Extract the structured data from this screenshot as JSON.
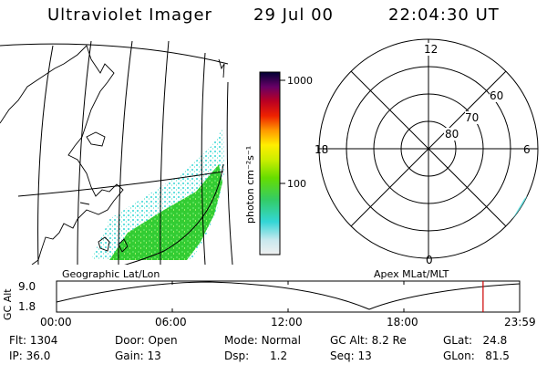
{
  "header": {
    "title": "Ultraviolet Imager",
    "date": "29 Jul 00",
    "time": "22:04:30 UT"
  },
  "map_panel": {
    "label": "Geographic Lat/Lon"
  },
  "colorbar": {
    "unit_label": "photon cm⁻²s⁻¹",
    "tick_top": "1000",
    "tick_mid": "100"
  },
  "polar_panel": {
    "label": "Apex MLat/MLT",
    "mlt_12": "12",
    "mlt_18": "18",
    "mlt_6": "6",
    "mlt_0": "0",
    "lat_60": "60",
    "lat_70": "70",
    "lat_80": "80"
  },
  "altitude_plot": {
    "ylabel": "GC Alt",
    "ytick_high": "9.0",
    "ytick_low": "1.8",
    "xticks": [
      "00:00",
      "06:00",
      "12:00",
      "18:00",
      "23:59"
    ],
    "current_time_fraction": 0.921
  },
  "info": {
    "flt_label": "Flt:",
    "flt_value": "1304",
    "ip_label": "IP:",
    "ip_value": "36.0",
    "door_label": "Door:",
    "door_value": "Open",
    "gain_label": "Gain:",
    "gain_value": "13",
    "mode_label": "Mode:",
    "mode_value": "Normal",
    "dsp_label": "Dsp:",
    "dsp_value": "1.2",
    "gcalt_label": "GC Alt:",
    "gcalt_value": "8.2 Re",
    "seq_label": "Seq:",
    "seq_value": "13",
    "glat_label": "GLat:",
    "glat_value": "24.8",
    "glon_label": "GLon:",
    "glon_value": "81.5"
  },
  "colors": {
    "marker": "#cc0000",
    "aurora_green": "#33cc33",
    "aurora_cyan": "#66e0e0"
  }
}
